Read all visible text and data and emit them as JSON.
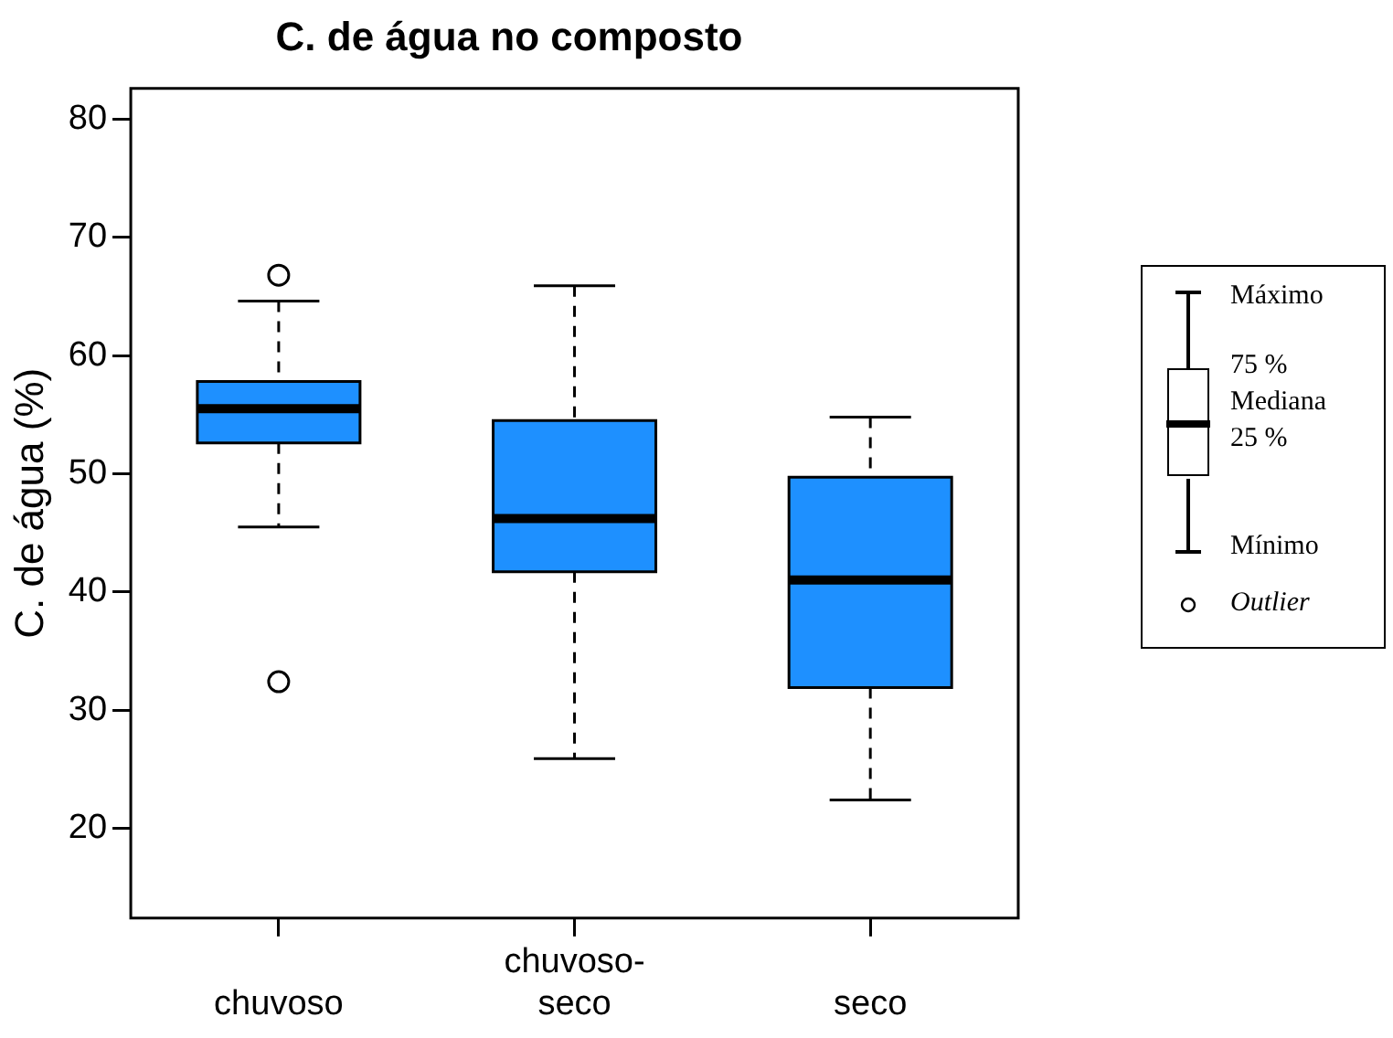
{
  "chart_data": {
    "type": "box",
    "title": "C. de água no composto",
    "ylabel": "C. de água (%)",
    "categories": [
      "chuvoso",
      "chuvoso-seco",
      "seco"
    ],
    "boxes": [
      {
        "low": 45.5,
        "q1": 52.6,
        "median": 55.5,
        "q3": 57.8,
        "high": 64.6,
        "outliers": [
          66.8,
          32.4
        ]
      },
      {
        "low": 25.9,
        "q1": 41.7,
        "median": 46.2,
        "q3": 54.5,
        "high": 65.9
      },
      {
        "low": 22.4,
        "q1": 31.9,
        "median": 41.0,
        "q3": 49.7,
        "high": 54.8
      }
    ],
    "color": "#1e90ff",
    "ylim": [
      12.4,
      82.6
    ],
    "yticks": [
      20,
      30,
      40,
      50,
      60,
      70,
      80
    ],
    "grid": false,
    "annotations": [
      "Máximo",
      "75 %",
      "Mediana",
      "25 %",
      "Mínimo",
      "Outlier"
    ]
  }
}
